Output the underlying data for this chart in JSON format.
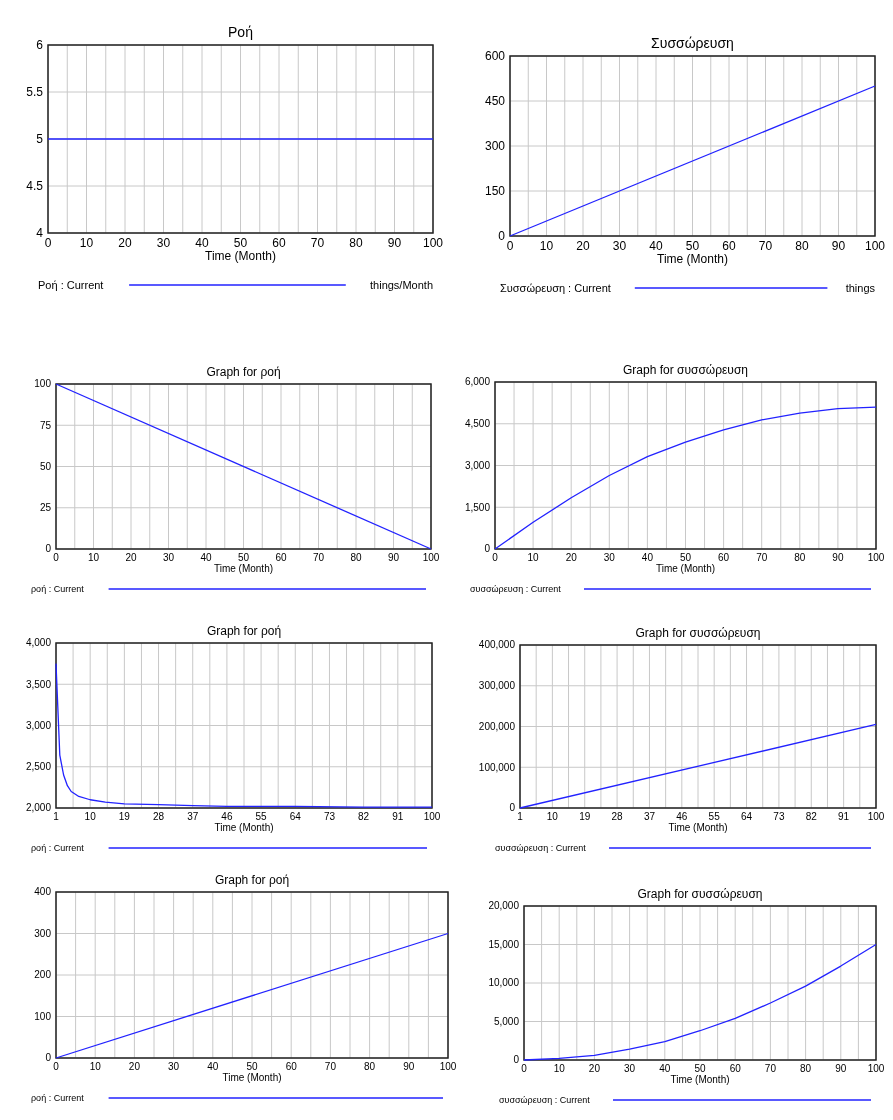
{
  "chart_data": [
    {
      "type": "line",
      "title": "Ροή",
      "xlabel": "Time (Month)",
      "annotations": [
        "things/Month"
      ],
      "x": [
        0,
        100
      ],
      "series": [
        {
          "name": "Ροή : Current",
          "color": "#2222ff",
          "values": [
            5,
            5
          ]
        }
      ],
      "xlim": [
        0,
        100
      ],
      "xticks": [
        0,
        10,
        20,
        30,
        40,
        50,
        60,
        70,
        80,
        90,
        100
      ],
      "ylim": [
        4,
        6
      ],
      "yticks": [
        4,
        4.5,
        5,
        5.5,
        6
      ],
      "grid": true,
      "legend": "bottom"
    },
    {
      "type": "line",
      "title": "Συσσώρευση",
      "xlabel": "Time (Month)",
      "annotations": [
        "things"
      ],
      "x": [
        0,
        100
      ],
      "series": [
        {
          "name": "Συσσώρευση : Current",
          "color": "#2222ff",
          "values": [
            0,
            500
          ]
        }
      ],
      "xlim": [
        0,
        100
      ],
      "xticks": [
        0,
        10,
        20,
        30,
        40,
        50,
        60,
        70,
        80,
        90,
        100
      ],
      "ylim": [
        0,
        600
      ],
      "yticks": [
        0,
        150,
        300,
        450,
        600
      ],
      "grid": true,
      "legend": "bottom"
    },
    {
      "type": "line",
      "title": "Graph for ροή",
      "xlabel": "Time (Month)",
      "x": [
        0,
        100
      ],
      "series": [
        {
          "name": "ροή : Current",
          "color": "#2222ff",
          "values": [
            100,
            0
          ]
        }
      ],
      "xlim": [
        0,
        100
      ],
      "xticks": [
        0,
        10,
        20,
        30,
        40,
        50,
        60,
        70,
        80,
        90,
        100
      ],
      "ylim": [
        0,
        100
      ],
      "yticks": [
        0,
        25,
        50,
        75,
        100
      ],
      "grid": true,
      "legend": "bottom"
    },
    {
      "type": "line",
      "title": "Graph for συσσώρευση",
      "xlabel": "Time (Month)",
      "x": [
        0,
        10,
        20,
        30,
        40,
        50,
        60,
        70,
        80,
        90,
        100
      ],
      "series": [
        {
          "name": "συσσώρευση : Current",
          "color": "#2222ff",
          "values": [
            0,
            960,
            1840,
            2640,
            3320,
            3840,
            4280,
            4640,
            4880,
            5040,
            5100
          ]
        }
      ],
      "xlim": [
        0,
        100
      ],
      "xticks": [
        0,
        10,
        20,
        30,
        40,
        50,
        60,
        70,
        80,
        90,
        100
      ],
      "ylim": [
        0,
        6000
      ],
      "yticks": [
        {
          "value": 0,
          "label": "0"
        },
        {
          "value": 1500,
          "label": "1,500"
        },
        {
          "value": 3000,
          "label": "3,000"
        },
        {
          "value": 4500,
          "label": "4,500"
        },
        {
          "value": 6000,
          "label": "6,000"
        }
      ],
      "grid": true,
      "legend": "bottom"
    },
    {
      "type": "line",
      "title": "Graph for ροή",
      "xlabel": "Time (Month)",
      "x": [
        1,
        2,
        3,
        4,
        5,
        7,
        10,
        14,
        19,
        28,
        37,
        46,
        64,
        82,
        100
      ],
      "series": [
        {
          "name": "ροή : Current",
          "color": "#2222ff",
          "values": [
            3750,
            2640,
            2400,
            2270,
            2200,
            2140,
            2100,
            2070,
            2050,
            2040,
            2030,
            2020,
            2020,
            2010,
            2010
          ]
        }
      ],
      "xlim": [
        1,
        100
      ],
      "xticks": [
        1,
        10,
        19,
        28,
        37,
        46,
        55,
        64,
        73,
        82,
        91,
        100
      ],
      "ylim": [
        2000,
        4000
      ],
      "yticks": [
        {
          "value": 2000,
          "label": "2,000"
        },
        {
          "value": 2500,
          "label": "2,500"
        },
        {
          "value": 3000,
          "label": "3,000"
        },
        {
          "value": 3500,
          "label": "3,500"
        },
        {
          "value": 4000,
          "label": "4,000"
        }
      ],
      "grid": true,
      "legend": "bottom"
    },
    {
      "type": "line",
      "title": "Graph for συσσώρευση",
      "xlabel": "Time (Month)",
      "x": [
        1,
        100
      ],
      "series": [
        {
          "name": "συσσώρευση : Current",
          "color": "#2222ff",
          "values": [
            0,
            205000
          ]
        }
      ],
      "xlim": [
        1,
        100
      ],
      "xticks": [
        1,
        10,
        19,
        28,
        37,
        46,
        55,
        64,
        73,
        82,
        91,
        100
      ],
      "ylim": [
        0,
        400000
      ],
      "yticks": [
        {
          "value": 0,
          "label": "0"
        },
        {
          "value": 100000,
          "label": "100,000"
        },
        {
          "value": 200000,
          "label": "200,000"
        },
        {
          "value": 300000,
          "label": "300,000"
        },
        {
          "value": 400000,
          "label": "400,000"
        }
      ],
      "grid": true,
      "legend": "bottom"
    },
    {
      "type": "line",
      "title": "Graph for ροή",
      "xlabel": "Time (Month)",
      "x": [
        0,
        100
      ],
      "series": [
        {
          "name": "ροή : Current",
          "color": "#2222ff",
          "values": [
            0,
            300
          ]
        }
      ],
      "xlim": [
        0,
        100
      ],
      "xticks": [
        0,
        10,
        20,
        30,
        40,
        50,
        60,
        70,
        80,
        90,
        100
      ],
      "ylim": [
        0,
        400
      ],
      "yticks": [
        0,
        100,
        200,
        300,
        400
      ],
      "grid": true,
      "legend": "bottom"
    },
    {
      "type": "line",
      "title": "Graph for συσσώρευση",
      "xlabel": "Time (Month)",
      "x": [
        0,
        10,
        20,
        30,
        40,
        50,
        60,
        70,
        80,
        90,
        100
      ],
      "series": [
        {
          "name": "συσσώρευση : Current",
          "color": "#2222ff",
          "values": [
            0,
            200,
            600,
            1400,
            2400,
            3800,
            5400,
            7400,
            9600,
            12200,
            15000
          ]
        }
      ],
      "xlim": [
        0,
        100
      ],
      "xticks": [
        0,
        10,
        20,
        30,
        40,
        50,
        60,
        70,
        80,
        90,
        100
      ],
      "ylim": [
        0,
        20000
      ],
      "yticks": [
        {
          "value": 0,
          "label": "0"
        },
        {
          "value": 5000,
          "label": "5,000"
        },
        {
          "value": 10000,
          "label": "10,000"
        },
        {
          "value": 15000,
          "label": "15,000"
        },
        {
          "value": 20000,
          "label": "20,000"
        }
      ],
      "grid": true,
      "legend": "bottom"
    }
  ]
}
